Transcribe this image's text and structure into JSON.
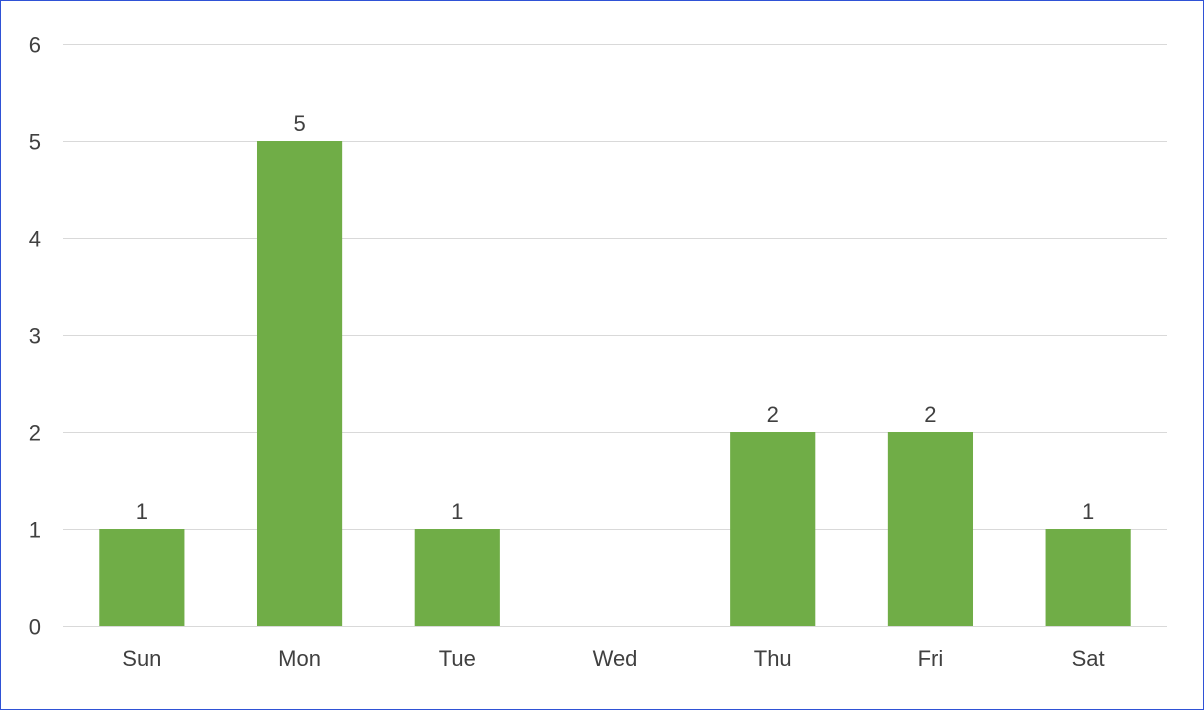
{
  "chart_data": {
    "type": "bar",
    "title": "",
    "xlabel": "",
    "ylabel": "",
    "categories": [
      "Sun",
      "Mon",
      "Tue",
      "Wed",
      "Thu",
      "Fri",
      "Sat"
    ],
    "values": [
      1,
      5,
      1,
      0,
      2,
      2,
      1
    ],
    "data_labels": [
      "1",
      "5",
      "1",
      "",
      "2",
      "2",
      "1"
    ],
    "ylim": [
      0,
      6
    ],
    "yticks": [
      "0",
      "1",
      "2",
      "3",
      "4",
      "5",
      "6"
    ],
    "grid": true,
    "legend": "none",
    "bar_color": "#70ad47",
    "grid_color": "#d9d9d9",
    "text_color": "#404040",
    "frame_color": "#2f52d6"
  }
}
